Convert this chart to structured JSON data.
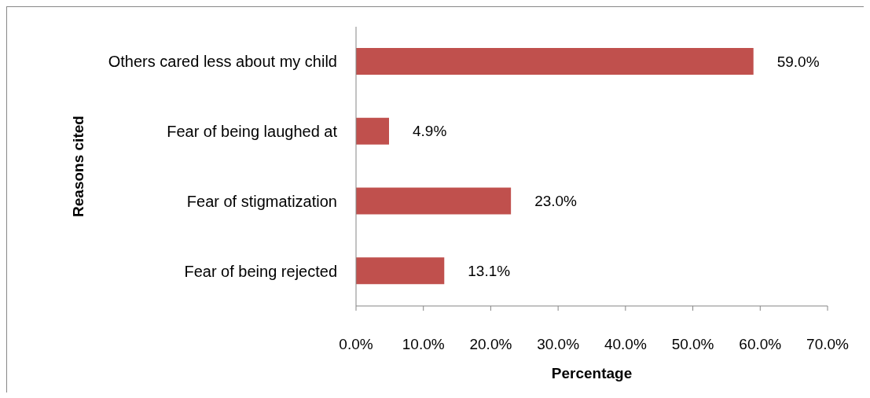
{
  "chart_data": {
    "type": "bar",
    "orientation": "horizontal",
    "categories": [
      "Others cared less about my child",
      "Fear of being laughed at",
      "Fear of stigmatization",
      "Fear of being rejected"
    ],
    "values": [
      59.0,
      4.9,
      23.0,
      13.1
    ],
    "value_labels": [
      "59.0%",
      "4.9%",
      "23.0%",
      "13.1%"
    ],
    "color": "#c0504d",
    "xlim": [
      0,
      70
    ],
    "xticks": [
      {
        "value": 0,
        "label": "0.0%"
      },
      {
        "value": 10,
        "label": "10.0%"
      },
      {
        "value": 20,
        "label": "20.0%"
      },
      {
        "value": 30,
        "label": "30.0%"
      },
      {
        "value": 40,
        "label": "40.0%"
      },
      {
        "value": 50,
        "label": "50.0%"
      },
      {
        "value": 60,
        "label": "60.0%"
      },
      {
        "value": 70,
        "label": "70.0%"
      }
    ],
    "xlabel": "Percentage",
    "ylabel": "Reasons cited"
  }
}
